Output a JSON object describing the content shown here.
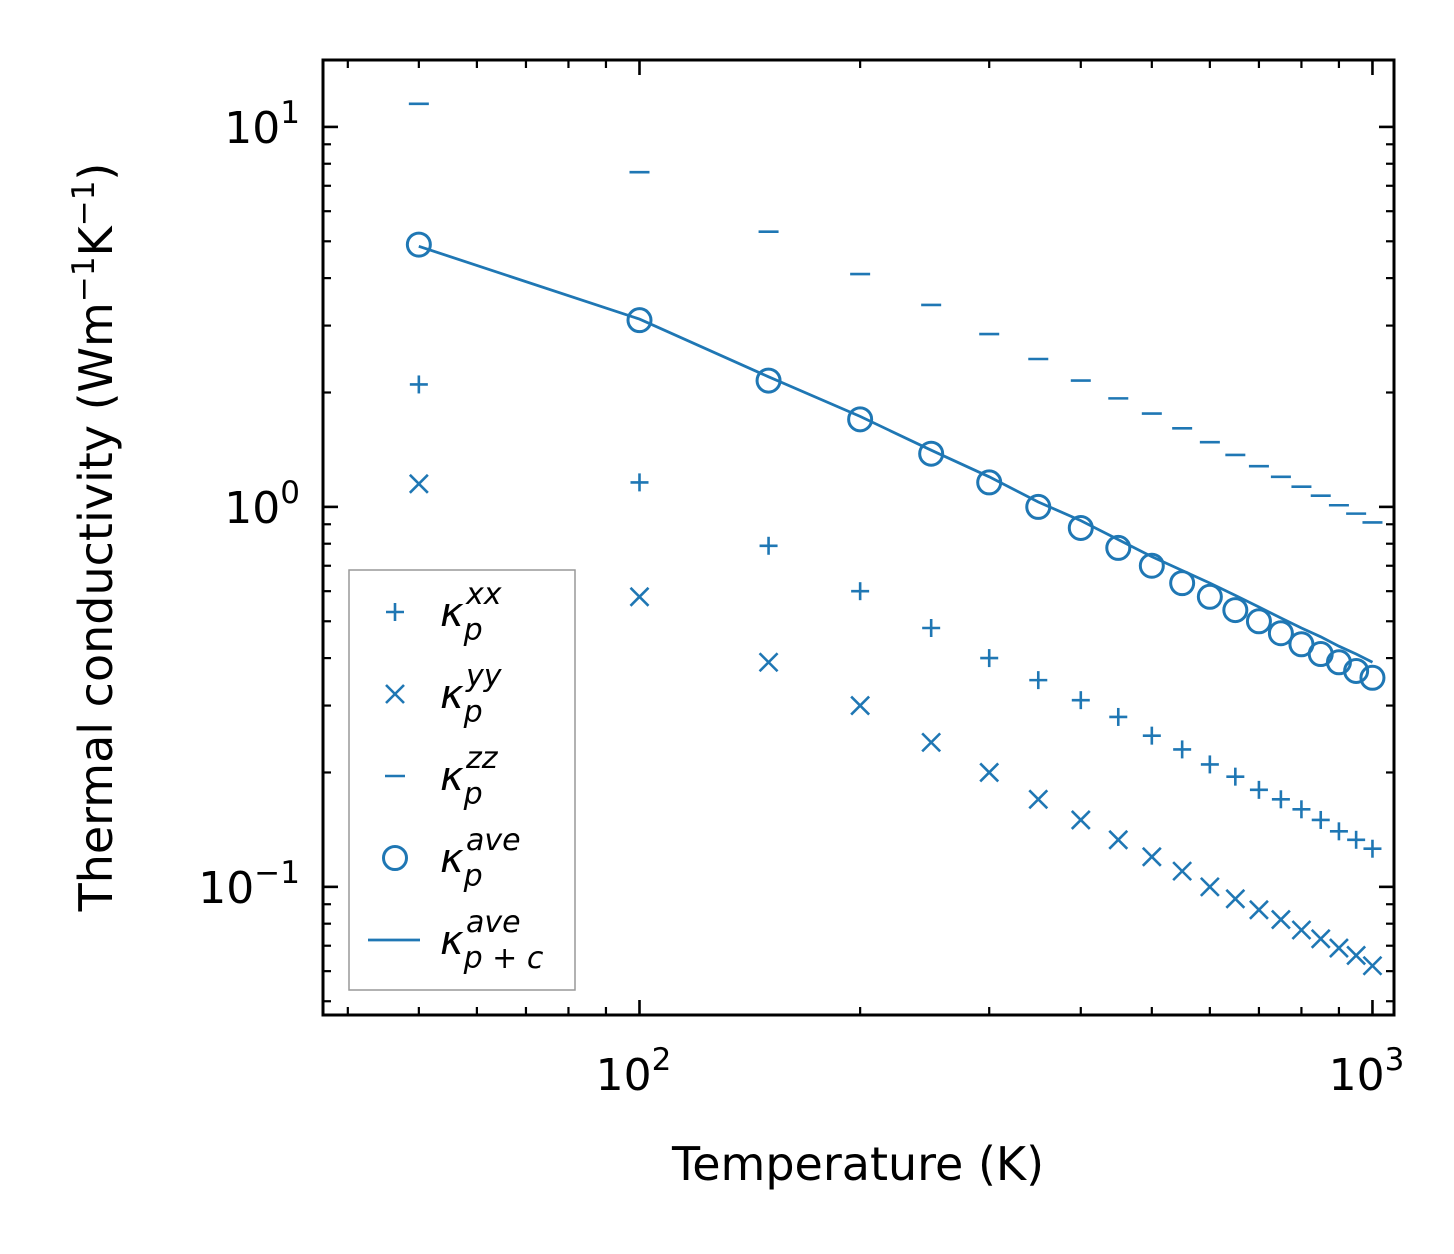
{
  "chart_data": {
    "type": "scatter",
    "title": "",
    "xlabel": "Temperature (K)",
    "ylabel_parts": {
      "main": "Thermal conductivity (Wm",
      "sup1": "−1",
      "mid": "K",
      "sup2": "−1",
      "end": ")"
    },
    "xscale": "log",
    "yscale": "log",
    "xlim": [
      37,
      1070
    ],
    "ylim": [
      0.046,
      15
    ],
    "x_ticks": [
      {
        "value": 100,
        "base": "10",
        "exp": "2"
      },
      {
        "value": 1000,
        "base": "10",
        "exp": "3"
      }
    ],
    "y_ticks": [
      {
        "value": 0.1,
        "base": "10",
        "exp": "−1"
      },
      {
        "value": 1,
        "base": "10",
        "exp": "0"
      },
      {
        "value": 10,
        "base": "10",
        "exp": "1"
      }
    ],
    "color": "#1f77b4",
    "x": [
      50,
      100,
      150,
      200,
      250,
      300,
      350,
      400,
      450,
      500,
      550,
      600,
      650,
      700,
      750,
      800,
      850,
      900,
      950,
      1000
    ],
    "series": [
      {
        "name": "κ_p^xx",
        "sym": "κ",
        "sub": "p",
        "sup": "xx",
        "marker": "plus",
        "values": [
          2.1,
          1.16,
          0.79,
          0.6,
          0.48,
          0.4,
          0.35,
          0.31,
          0.28,
          0.25,
          0.23,
          0.21,
          0.195,
          0.18,
          0.17,
          0.16,
          0.15,
          0.14,
          0.133,
          0.126
        ]
      },
      {
        "name": "κ_p^yy",
        "sym": "κ",
        "sub": "p",
        "sup": "yy",
        "marker": "x",
        "values": [
          1.15,
          0.58,
          0.39,
          0.3,
          0.24,
          0.2,
          0.17,
          0.15,
          0.133,
          0.12,
          0.11,
          0.1,
          0.093,
          0.087,
          0.082,
          0.077,
          0.073,
          0.069,
          0.066,
          0.062
        ]
      },
      {
        "name": "κ_p^zz",
        "sym": "κ",
        "sub": "p",
        "sup": "zz",
        "marker": "hline",
        "values": [
          11.5,
          7.6,
          5.3,
          4.1,
          3.4,
          2.85,
          2.45,
          2.15,
          1.93,
          1.76,
          1.61,
          1.48,
          1.37,
          1.28,
          1.2,
          1.13,
          1.07,
          1.01,
          0.96,
          0.91
        ]
      },
      {
        "name": "κ_p^ave",
        "sym": "κ",
        "sub": "p",
        "sup": "ave",
        "marker": "circle",
        "values": [
          4.9,
          3.1,
          2.15,
          1.7,
          1.38,
          1.16,
          1.0,
          0.88,
          0.78,
          0.7,
          0.63,
          0.58,
          0.535,
          0.5,
          0.465,
          0.435,
          0.41,
          0.39,
          0.37,
          0.355
        ]
      },
      {
        "name": "κ_p+c^ave",
        "sym": "κ",
        "sub": "p + c",
        "sup": "ave",
        "marker": "line",
        "values": [
          4.85,
          3.12,
          2.2,
          1.73,
          1.41,
          1.2,
          1.03,
          0.92,
          0.82,
          0.74,
          0.68,
          0.63,
          0.585,
          0.545,
          0.51,
          0.48,
          0.455,
          0.43,
          0.41,
          0.39
        ]
      }
    ],
    "legend_position": "lower-left",
    "grid": false
  }
}
